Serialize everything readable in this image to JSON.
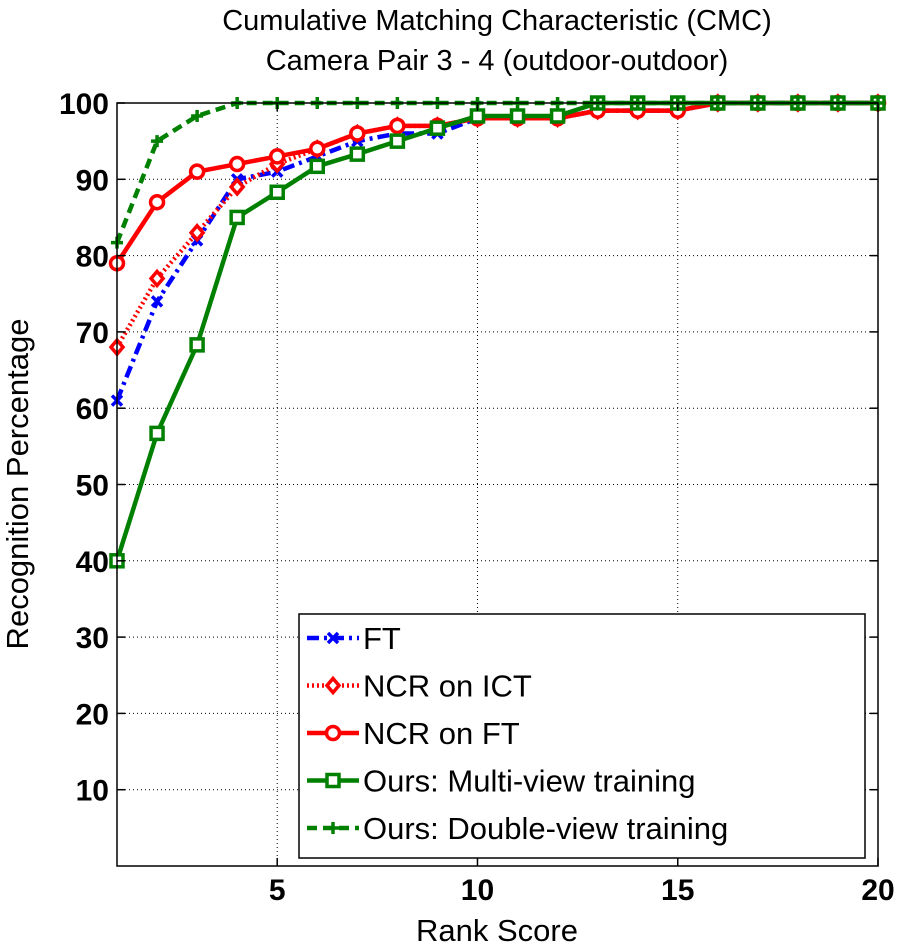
{
  "chart_data": {
    "type": "line",
    "title": "Cumulative Matching Characteristic (CMC)",
    "subtitle": "Camera Pair 3 - 4 (outdoor-outdoor)",
    "xlabel": "Rank Score",
    "ylabel": "Recognition Percentage",
    "xlim": [
      1,
      20
    ],
    "ylim": [
      0,
      100
    ],
    "xticks": [
      5,
      10,
      15,
      20
    ],
    "yticks": [
      10,
      20,
      30,
      40,
      50,
      60,
      70,
      80,
      90,
      100
    ],
    "grid": true,
    "legend_position": "bottom-right",
    "x": [
      1,
      2,
      3,
      4,
      5,
      6,
      7,
      8,
      9,
      10,
      11,
      12,
      13,
      14,
      15,
      16,
      17,
      18,
      19,
      20
    ],
    "series": [
      {
        "name": "FT",
        "color": "#0000ff",
        "line": "dash-dot",
        "marker": "x",
        "values": [
          61,
          74,
          82,
          90,
          91,
          93,
          95,
          96,
          96,
          98,
          98,
          98,
          99,
          99,
          99,
          100,
          100,
          100,
          100,
          100
        ]
      },
      {
        "name": "NCR on ICT",
        "color": "#ff0000",
        "line": "dotted",
        "marker": "diamond",
        "values": [
          68,
          77,
          83,
          89,
          92,
          94,
          96,
          97,
          97,
          98,
          98,
          98,
          99,
          99,
          99,
          100,
          100,
          100,
          100,
          100
        ]
      },
      {
        "name": "NCR on FT",
        "color": "#ff0000",
        "line": "solid",
        "marker": "circle",
        "values": [
          79,
          87,
          91,
          92,
          93,
          94,
          96,
          97,
          97,
          98,
          98,
          98,
          99,
          99,
          99,
          100,
          100,
          100,
          100,
          100
        ]
      },
      {
        "name": "Ours: Multi-view training",
        "color": "#008000",
        "line": "solid",
        "marker": "square",
        "values": [
          40,
          56.7,
          68.3,
          85,
          88.3,
          91.7,
          93.3,
          95,
          96.7,
          98.3,
          98.3,
          98.3,
          100,
          100,
          100,
          100,
          100,
          100,
          100,
          100
        ]
      },
      {
        "name": "Ours: Double-view training",
        "color": "#008000",
        "line": "dashed",
        "marker": "plus",
        "values": [
          81.7,
          95,
          98.3,
          100,
          100,
          100,
          100,
          100,
          100,
          100,
          100,
          100,
          100,
          100,
          100,
          100,
          100,
          100,
          100,
          100
        ]
      }
    ]
  }
}
